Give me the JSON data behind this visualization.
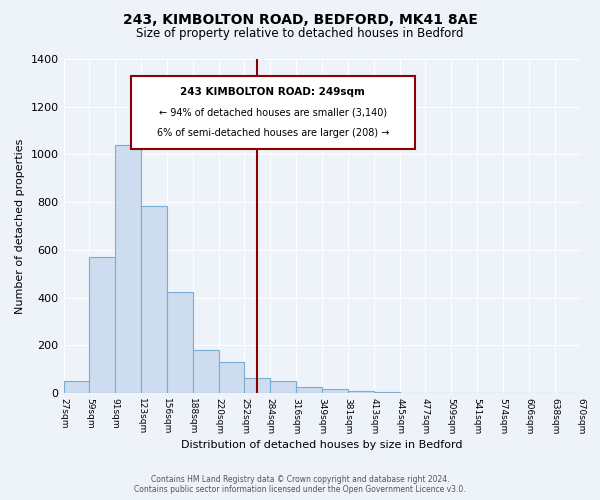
{
  "title": "243, KIMBOLTON ROAD, BEDFORD, MK41 8AE",
  "subtitle": "Size of property relative to detached houses in Bedford",
  "xlabel": "Distribution of detached houses by size in Bedford",
  "ylabel": "Number of detached properties",
  "bar_color_face": "#cddcee",
  "bar_color_edge": "#7aadd4",
  "background_color": "#eef2f9",
  "grid_color": "#ffffff",
  "bin_labels": [
    "27sqm",
    "59sqm",
    "91sqm",
    "123sqm",
    "156sqm",
    "188sqm",
    "220sqm",
    "252sqm",
    "284sqm",
    "316sqm",
    "349sqm",
    "381sqm",
    "413sqm",
    "445sqm",
    "477sqm",
    "509sqm",
    "541sqm",
    "574sqm",
    "606sqm",
    "638sqm",
    "670sqm"
  ],
  "bar_heights": [
    50,
    570,
    1040,
    785,
    425,
    180,
    130,
    65,
    50,
    28,
    18,
    8,
    5,
    1,
    0,
    0,
    0,
    0,
    0,
    0
  ],
  "vline_position": 7.5,
  "annotation_title": "243 KIMBOLTON ROAD: 249sqm",
  "annotation_line1": "← 94% of detached houses are smaller (3,140)",
  "annotation_line2": "6% of semi-detached houses are larger (208) →",
  "ylim": [
    0,
    1400
  ],
  "yticks": [
    0,
    200,
    400,
    600,
    800,
    1000,
    1200,
    1400
  ],
  "footer1": "Contains HM Land Registry data © Crown copyright and database right 2024.",
  "footer2": "Contains public sector information licensed under the Open Government Licence v3.0."
}
